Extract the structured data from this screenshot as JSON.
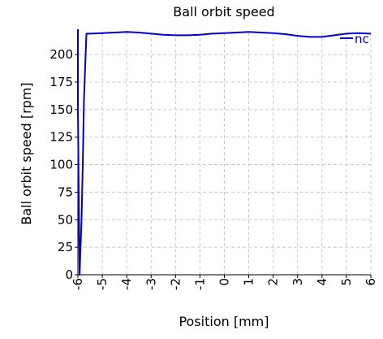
{
  "chart_data": {
    "type": "line",
    "title": "Ball orbit speed",
    "xlabel": "Position [mm]",
    "ylabel": "Ball orbit speed [rpm]",
    "xlim": [
      -6,
      6
    ],
    "ylim": [
      0,
      220
    ],
    "xticks": [
      -6,
      -5,
      -4,
      -3,
      -2,
      -1,
      0,
      1,
      2,
      3,
      4,
      5,
      6
    ],
    "xtick_labels": [
      "-6",
      "-5",
      "-4",
      "-3",
      "-2",
      "-1",
      "0",
      "1",
      "2",
      "3",
      "4",
      "5",
      "6"
    ],
    "yticks": [
      0,
      25,
      50,
      75,
      100,
      125,
      150,
      175,
      200
    ],
    "ytick_labels": [
      "0",
      "25",
      "50",
      "75",
      "100",
      "125",
      "150",
      "175",
      "200"
    ],
    "grid": true,
    "legend_position": "top-right",
    "series": [
      {
        "name": "nc",
        "color": "#0000cc",
        "x": [
          -6.0,
          -6.0,
          -5.93,
          -5.85,
          -5.8,
          -5.75,
          -5.65,
          -5.5,
          -5.0,
          -4.5,
          -4.0,
          -3.5,
          -3.0,
          -2.5,
          -2.0,
          -1.5,
          -1.0,
          -0.5,
          0.0,
          0.5,
          1.0,
          1.5,
          2.0,
          2.5,
          3.0,
          3.5,
          4.0,
          4.5,
          5.0,
          5.5,
          6.0
        ],
        "y": [
          223,
          150,
          0,
          50,
          100,
          160,
          219,
          219,
          219.5,
          220,
          220.5,
          220,
          219,
          218,
          217.5,
          217.5,
          218,
          219,
          219.5,
          220,
          220.5,
          220,
          219.5,
          218.5,
          217,
          216,
          216,
          217.5,
          219,
          219.5,
          219
        ]
      }
    ]
  }
}
